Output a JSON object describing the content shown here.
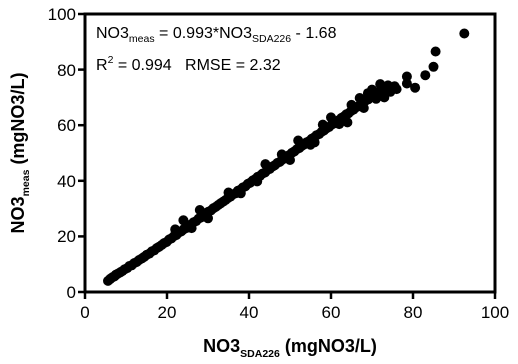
{
  "chart_data": {
    "type": "scatter",
    "xlim": [
      0,
      100
    ],
    "ylim": [
      0,
      100
    ],
    "x_ticks": [
      "0",
      "20",
      "40",
      "60",
      "80",
      "100"
    ],
    "y_ticks": [
      "0",
      "20",
      "40",
      "60",
      "80",
      "100"
    ],
    "xlabel": {
      "main": "NO3",
      "sub": "SDA226",
      "rest": " (mgNO3/L)"
    },
    "ylabel": {
      "main": "NO3",
      "sub": "meas",
      "rest": " (mgNO3/L)"
    },
    "annotations": {
      "equation": {
        "lhs_main": "NO3",
        "lhs_sub": "meas",
        "mid": " = 0.993*NO3",
        "rhs_sub": "SDA226",
        "tail": " - 1.68"
      },
      "stats": {
        "r_main": "R",
        "r_sup": "2",
        "r_rest": " = 0.994   RMSE = 2.32"
      }
    },
    "marker_color": "#000000",
    "grid": false,
    "fit": {
      "slope": 0.993,
      "intercept": -1.68
    },
    "points": [
      [
        5.6,
        4.0
      ],
      [
        6.1,
        4.6
      ],
      [
        6.4,
        5.0
      ],
      [
        6.8,
        5.4
      ],
      [
        7.2,
        5.6
      ],
      [
        7.5,
        6.2
      ],
      [
        8.0,
        6.6
      ],
      [
        8.6,
        7.1
      ],
      [
        9.1,
        7.5
      ],
      [
        9.7,
        8.2
      ],
      [
        10.3,
        8.6
      ],
      [
        10.8,
        9.3
      ],
      [
        11.4,
        9.6
      ],
      [
        12.0,
        10.4
      ],
      [
        12.6,
        10.8
      ],
      [
        13.2,
        11.5
      ],
      [
        13.9,
        12.1
      ],
      [
        14.5,
        12.7
      ],
      [
        15.1,
        13.4
      ],
      [
        15.7,
        13.8
      ],
      [
        16.3,
        14.6
      ],
      [
        16.9,
        15.0
      ],
      [
        17.5,
        15.8
      ],
      [
        18.1,
        16.3
      ],
      [
        18.7,
        16.9
      ],
      [
        19.3,
        17.6
      ],
      [
        19.9,
        18.0
      ],
      [
        20.5,
        18.9
      ],
      [
        21.1,
        19.3
      ],
      [
        21.7,
        20.1
      ],
      [
        22.3,
        20.5
      ],
      [
        22.9,
        21.4
      ],
      [
        23.5,
        21.8
      ],
      [
        24.1,
        22.6
      ],
      [
        24.7,
        23.0
      ],
      [
        25.3,
        23.9
      ],
      [
        25.9,
        24.3
      ],
      [
        26.5,
        25.1
      ],
      [
        27.1,
        25.5
      ],
      [
        27.7,
        26.4
      ],
      [
        28.3,
        26.8
      ],
      [
        28.9,
        27.6
      ],
      [
        29.5,
        28.0
      ],
      [
        30.1,
        28.9
      ],
      [
        30.7,
        29.3
      ],
      [
        31.3,
        30.1
      ],
      [
        31.9,
        30.6
      ],
      [
        32.5,
        31.3
      ],
      [
        33.1,
        31.9
      ],
      [
        33.7,
        32.5
      ],
      [
        34.3,
        33.1
      ],
      [
        34.9,
        33.8
      ],
      [
        35.5,
        34.3
      ],
      [
        36.1,
        35.1
      ],
      [
        36.7,
        35.5
      ],
      [
        37.3,
        36.4
      ],
      [
        37.9,
        36.8
      ],
      [
        38.5,
        37.6
      ],
      [
        39.1,
        38.0
      ],
      [
        39.7,
        38.9
      ],
      [
        40.3,
        39.3
      ],
      [
        40.9,
        40.1
      ],
      [
        41.5,
        40.6
      ],
      [
        42.1,
        41.4
      ],
      [
        42.7,
        41.8
      ],
      [
        43.3,
        42.6
      ],
      [
        43.9,
        43.0
      ],
      [
        44.5,
        43.9
      ],
      [
        45.1,
        44.3
      ],
      [
        45.7,
        45.1
      ],
      [
        46.3,
        45.6
      ],
      [
        46.9,
        46.4
      ],
      [
        47.5,
        46.8
      ],
      [
        48.1,
        47.6
      ],
      [
        48.7,
        48.1
      ],
      [
        49.3,
        48.9
      ],
      [
        49.9,
        49.3
      ],
      [
        50.5,
        50.1
      ],
      [
        51.1,
        50.6
      ],
      [
        51.7,
        51.4
      ],
      [
        52.3,
        51.8
      ],
      [
        52.9,
        52.6
      ],
      [
        53.5,
        53.1
      ],
      [
        54.1,
        53.9
      ],
      [
        54.7,
        54.3
      ],
      [
        55.3,
        55.1
      ],
      [
        55.9,
        55.6
      ],
      [
        56.5,
        56.4
      ],
      [
        57.1,
        56.8
      ],
      [
        57.7,
        57.6
      ],
      [
        58.3,
        58.1
      ],
      [
        58.9,
        58.9
      ],
      [
        59.5,
        59.3
      ],
      [
        60.1,
        60.1
      ],
      [
        60.7,
        60.6
      ],
      [
        61.3,
        61.4
      ],
      [
        61.9,
        61.8
      ],
      [
        62.5,
        62.6
      ],
      [
        63.1,
        63.1
      ],
      [
        63.7,
        63.9
      ],
      [
        64.3,
        64.3
      ],
      [
        64.9,
        65.1
      ],
      [
        65.5,
        65.6
      ],
      [
        66.1,
        66.4
      ],
      [
        66.7,
        66.8
      ],
      [
        67.3,
        67.6
      ],
      [
        67.9,
        68.1
      ],
      [
        68.5,
        68.9
      ],
      [
        69.1,
        69.3
      ],
      [
        69.7,
        70.1
      ],
      [
        70.3,
        70.6
      ],
      [
        70.9,
        71.4
      ],
      [
        71.5,
        71.8
      ],
      [
        72.1,
        72.6
      ],
      [
        72.7,
        73.1
      ],
      [
        73.3,
        73.9
      ],
      [
        73.9,
        74.3
      ],
      [
        74.5,
        72.0
      ],
      [
        30.0,
        26.5
      ],
      [
        35.0,
        35.8
      ],
      [
        42.0,
        39.8
      ],
      [
        48.0,
        49.5
      ],
      [
        55.0,
        53.0
      ],
      [
        58.0,
        60.2
      ],
      [
        62.0,
        60.4
      ],
      [
        65.0,
        67.3
      ],
      [
        68.0,
        66.2
      ],
      [
        70.0,
        72.8
      ],
      [
        71.0,
        69.5
      ],
      [
        72.0,
        74.8
      ],
      [
        73.0,
        70.0
      ],
      [
        76.0,
        73.0
      ],
      [
        78.5,
        77.5
      ],
      [
        78.5,
        75.0
      ],
      [
        80.5,
        73.5
      ],
      [
        83.0,
        78.0
      ],
      [
        85.0,
        81.0
      ],
      [
        85.5,
        86.5
      ],
      [
        92.5,
        93.0
      ],
      [
        22.0,
        22.5
      ],
      [
        24.0,
        25.8
      ],
      [
        26.0,
        23.0
      ],
      [
        28.0,
        29.5
      ],
      [
        38.0,
        35.5
      ],
      [
        44.0,
        46.0
      ],
      [
        50.0,
        47.5
      ],
      [
        52.0,
        54.5
      ],
      [
        56.0,
        53.8
      ],
      [
        60.0,
        62.8
      ],
      [
        64.0,
        61.0
      ],
      [
        67.0,
        69.8
      ],
      [
        69.0,
        71.5
      ],
      [
        74.0,
        72.8
      ],
      [
        75.5,
        74.0
      ]
    ]
  }
}
